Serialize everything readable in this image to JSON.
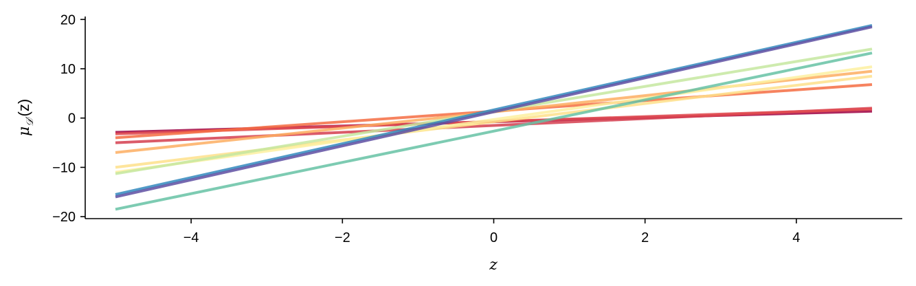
{
  "chart_data": {
    "type": "line",
    "title": "",
    "xlabel": "z",
    "ylabel_parts": {
      "mu": "μ",
      "sub": "𝒟′",
      "arg": "(z)"
    },
    "xlim": [
      -5.4,
      5.4
    ],
    "ylim": [
      -20.4,
      20.6
    ],
    "xticks": [
      -4,
      -2,
      0,
      2,
      4
    ],
    "xtick_labels": [
      "−4",
      "−2",
      "0",
      "2",
      "4"
    ],
    "yticks": [
      -20,
      -10,
      0,
      10,
      20
    ],
    "ytick_labels": [
      "−20",
      "−10",
      "0",
      "10",
      "20"
    ],
    "grid": false,
    "spines": "left-bottom",
    "x": [
      -5,
      5
    ],
    "series": [
      {
        "values": [
          -2.9,
          1.4
        ],
        "color": "#9e0142"
      },
      {
        "values": [
          -5.0,
          2.0
        ],
        "color": "#d53e4f"
      },
      {
        "values": [
          -3.2,
          1.8
        ],
        "color": "#e04b50"
      },
      {
        "values": [
          -4.0,
          6.8
        ],
        "color": "#f46d43"
      },
      {
        "values": [
          -7.0,
          9.5
        ],
        "color": "#fdae61"
      },
      {
        "values": [
          -10.0,
          8.5
        ],
        "color": "#fee08b"
      },
      {
        "values": [
          -11.0,
          10.4
        ],
        "color": "#fdf0a0"
      },
      {
        "values": [
          -11.3,
          14.0
        ],
        "color": "#c5e8a0"
      },
      {
        "values": [
          -18.5,
          13.2
        ],
        "color": "#66c2a5"
      },
      {
        "values": [
          -15.5,
          18.8
        ],
        "color": "#3288bd"
      },
      {
        "values": [
          -16.0,
          18.5
        ],
        "color": "#5e4fa2"
      }
    ]
  }
}
